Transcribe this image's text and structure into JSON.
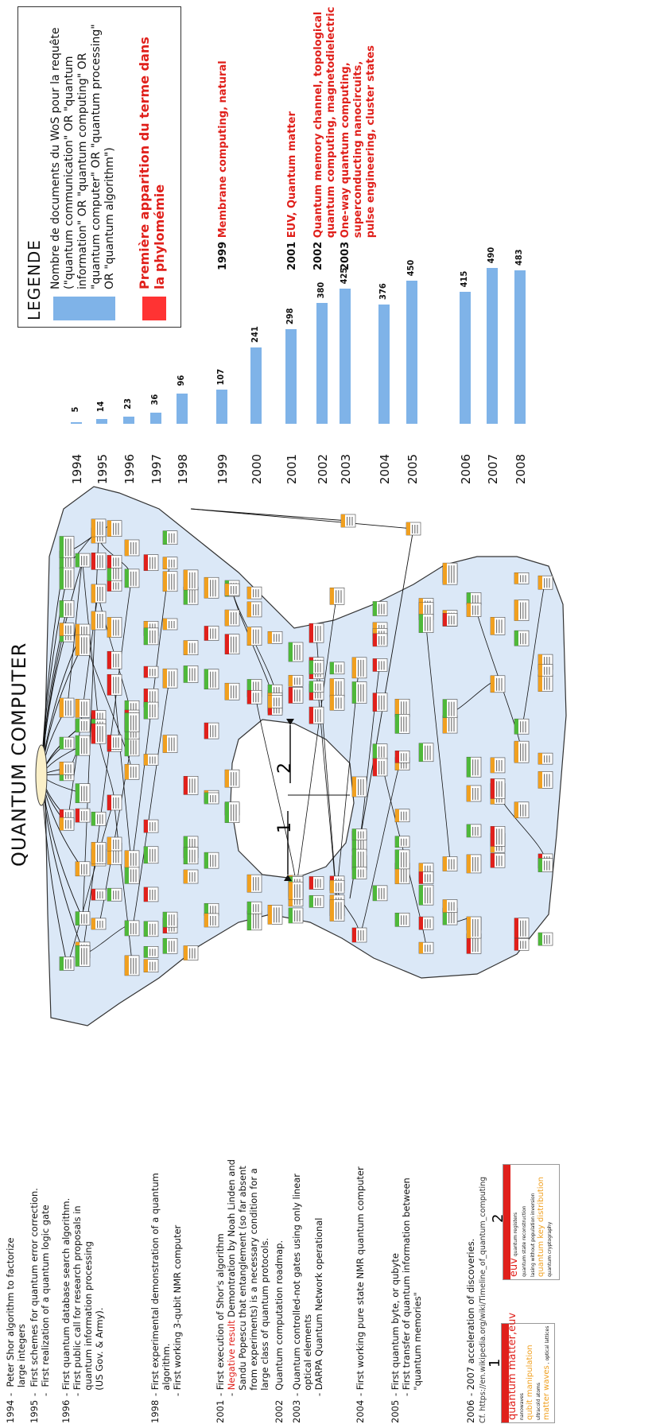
{
  "title": "QUANTUM COMPUTER",
  "timeline_events": [
    {
      "year": "1994",
      "lines": [
        "-  Peter Shor algorithm to factorize",
        "   large integers"
      ]
    },
    {
      "year": "1995",
      "lines": [
        "-  First schemes for quantum error correction.",
        "-  First realization of a quantum logic gate"
      ]
    },
    {
      "year": "1996",
      "lines": [
        "- First quantum database search algorithm.",
        "- First public call for research proposals in",
        "  quantum information processing",
        "  (US Gov. & Army)."
      ]
    },
    {
      "year": "1998",
      "lines": [
        "- First experimental demonstration of a quantum",
        "  algorithm.",
        "- First working 3-qubit NMR computer"
      ]
    },
    {
      "year": "2001",
      "lines": [
        "- First execution of Shor's algorithm"
      ]
    },
    {
      "year": "",
      "neg_label": "Negative result",
      "lines": [
        "- ",
        " Demontration by Noah Linden and",
        "  Sandu Popescu that entanglement (so far absent",
        "  from experiments) is a necessary condition for a",
        "  large class of quantum protocols."
      ]
    },
    {
      "year": "2002",
      "lines": [
        "  Quantum computation roadmap."
      ]
    },
    {
      "year": "2003",
      "lines": [
        "- Quantum controlled-not gates using only linear",
        "  optical elements",
        "- DARPA Quantum Network operational"
      ]
    },
    {
      "year": "2004",
      "lines": [
        "- First working pure state NMR quantum computer"
      ]
    },
    {
      "year": "2005",
      "lines": [
        "- First quantum byte, or qubyte",
        "- First transfer of quantum information between",
        "  \"quantum memories\""
      ]
    },
    {
      "year": "2006",
      "lines": [
        "- 2007 acceleration of discoveries."
      ]
    }
  ],
  "citation": "Cf. https://en.wikipedia.org/wiki/Timeline_of_quantum_computing",
  "region_labels": [
    "1",
    "2"
  ],
  "cluster_legend_1": {
    "number": "1",
    "lines": [
      {
        "text": "quantum matter,euv",
        "color": "#e0201b"
      },
      {
        "text": "nanowaves",
        "color": "#111111"
      },
      {
        "text": "qubit manipulation",
        "color": "#f0a020"
      },
      {
        "text": "ultracold atoms",
        "color": "#111111"
      },
      {
        "text": "matter waves",
        "color": "#f0a020",
        "suffix": ", optical lattices"
      }
    ]
  },
  "cluster_legend_2": {
    "number": "2",
    "lines": [
      {
        "text": "euv",
        "color": "#e0201b",
        "suffix": "quantum registers"
      },
      {
        "text": "quantum state reconstruction",
        "color": "#111111"
      },
      {
        "text": "lasing without population inversion",
        "color": "#111111"
      },
      {
        "text": "quantum key distribution",
        "color": "#f0a020"
      },
      {
        "text": "quantum cryptography",
        "color": "#111111"
      }
    ]
  },
  "legend": {
    "title": "LEGENDE",
    "bar_text": "Nombre de documents du WoS pour la requête (\"quantum communication\" OR \"quantum information\" OR \"quantum computing\" OR \"quantum computer\" OR \"quantum processing\" OR \"quantum algorithm\")",
    "red_text": "Première apparition du terme dans la phylomémie",
    "bar_color": "#7fb3e8",
    "red_color": "#ff3333"
  },
  "chart_data": {
    "type": "bar",
    "categories": [
      "1994",
      "1995",
      "1996",
      "1997",
      "1998",
      "1999",
      "2000",
      "2001",
      "2002",
      "2003",
      "2004",
      "2005",
      "2006",
      "2007",
      "2008"
    ],
    "values": [
      5,
      14,
      23,
      36,
      96,
      107,
      241,
      298,
      380,
      425,
      376,
      450,
      415,
      490,
      483
    ],
    "title": "",
    "xlabel": "",
    "ylabel": ""
  },
  "term_annotations": [
    {
      "year": "1999",
      "lines": [
        "Membrane computing, natural"
      ]
    },
    {
      "year": "2001",
      "lines": [
        "EUV, Quantum matter"
      ]
    },
    {
      "year": "2002",
      "lines": [
        "Quantum memory channel, topological",
        "quantum computing,  magnetodielectric"
      ]
    },
    {
      "year": "2003",
      "lines": [
        "One-way quantum computing,",
        "superconducting nanocircuits,",
        "pulse engineering, cluster states"
      ]
    }
  ],
  "colors": {
    "cluster_fill": "#dbe8f7",
    "node_red": "#e0201b",
    "node_orange": "#f0a020",
    "node_green": "#4fb83a"
  }
}
